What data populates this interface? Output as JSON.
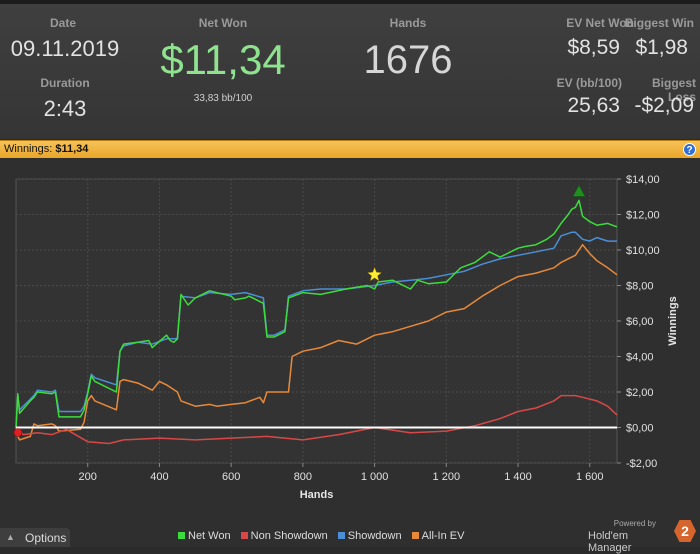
{
  "stats": {
    "date_label": "Date",
    "date_value": "09.11.2019",
    "duration_label": "Duration",
    "duration_value": "2:43",
    "net_won_label": "Net Won",
    "net_won_value": "$11,34",
    "net_won_sub": "33,83 bb/100",
    "hands_label": "Hands",
    "hands_value": "1676",
    "ev_net_won_label": "EV Net Won",
    "ev_net_won_value": "$8,59",
    "biggest_win_label": "Biggest Win",
    "biggest_win_value": "$1,98",
    "ev_bb_label": "EV (bb/100)",
    "ev_bb_value": "25,63",
    "biggest_loss_label": "Biggest Loss",
    "biggest_loss_value": "-$2,09"
  },
  "banner": {
    "label": "Winnings:",
    "value": "$11,34",
    "help": "?"
  },
  "colors": {
    "net_won": "#3ddc3d",
    "non_showdown": "#d94848",
    "showdown": "#4a8fd8",
    "all_in_ev": "#e8893a",
    "net_won_text": "#8fe38f",
    "banner": "#f0b440"
  },
  "chart_data": {
    "type": "line",
    "xlabel": "Hands",
    "ylabel": "Winnings",
    "xlim": [
      0,
      1676
    ],
    "ylim": [
      -2,
      14
    ],
    "x_ticks": [
      200,
      400,
      600,
      800,
      1000,
      1200,
      1400,
      1600
    ],
    "x_tick_labels": [
      "200",
      "400",
      "600",
      "800",
      "1 000",
      "1 200",
      "1 400",
      "1 600"
    ],
    "y_ticks": [
      -2,
      0,
      2,
      4,
      6,
      8,
      10,
      12,
      14
    ],
    "y_tick_labels": [
      "-$2,00",
      "$0,00",
      "$2,00",
      "$4,00",
      "$6,00",
      "$8,00",
      "$10,00",
      "$12,00",
      "$14,00"
    ],
    "grid": true,
    "legend_position": "bottom",
    "series": [
      {
        "name": "Net Won",
        "color": "#3ddc3d",
        "x": [
          0,
          5,
          10,
          40,
          50,
          60,
          100,
          110,
          120,
          180,
          190,
          200,
          210,
          220,
          280,
          290,
          300,
          340,
          370,
          380,
          420,
          430,
          440,
          450,
          460,
          480,
          500,
          540,
          600,
          610,
          640,
          650,
          690,
          700,
          720,
          750,
          760,
          800,
          850,
          920,
          980,
          1000,
          1010,
          1050,
          1100,
          1120,
          1150,
          1200,
          1240,
          1280,
          1320,
          1350,
          1400,
          1420,
          1450,
          1480,
          1500,
          1520,
          1540,
          1550,
          1560,
          1570,
          1580,
          1600,
          1620,
          1650,
          1676
        ],
        "y": [
          0.0,
          1.9,
          0.8,
          1.5,
          1.7,
          2.0,
          1.9,
          2.0,
          0.6,
          0.6,
          1.0,
          1.9,
          2.9,
          2.6,
          2.0,
          4.3,
          4.7,
          4.8,
          4.9,
          4.5,
          5.2,
          4.9,
          4.8,
          5.0,
          7.5,
          6.9,
          7.3,
          7.7,
          7.4,
          7.2,
          7.3,
          7.4,
          7.0,
          5.1,
          5.1,
          5.4,
          7.3,
          7.6,
          7.5,
          7.8,
          8.0,
          7.8,
          8.2,
          8.3,
          7.8,
          8.3,
          8.1,
          8.2,
          9.0,
          9.3,
          9.9,
          9.6,
          10.1,
          10.2,
          10.3,
          10.6,
          10.9,
          11.5,
          12.0,
          12.3,
          12.4,
          12.8,
          11.9,
          11.6,
          11.4,
          11.5,
          11.3
        ]
      },
      {
        "name": "Showdown",
        "color": "#4a8fd8",
        "x": [
          0,
          5,
          10,
          40,
          50,
          60,
          100,
          110,
          120,
          180,
          190,
          200,
          210,
          220,
          280,
          290,
          300,
          340,
          380,
          420,
          450,
          460,
          500,
          540,
          600,
          640,
          690,
          700,
          720,
          750,
          760,
          800,
          850,
          920,
          1000,
          1050,
          1100,
          1150,
          1200,
          1250,
          1300,
          1350,
          1400,
          1450,
          1500,
          1520,
          1550,
          1560,
          1580,
          1600,
          1620,
          1650,
          1676
        ],
        "y": [
          0.0,
          1.8,
          1.0,
          1.6,
          1.8,
          2.1,
          2.0,
          2.1,
          0.9,
          0.9,
          1.2,
          2.0,
          3.0,
          2.8,
          2.4,
          4.3,
          4.6,
          4.8,
          4.7,
          5.0,
          5.0,
          7.4,
          7.3,
          7.6,
          7.5,
          7.6,
          7.3,
          5.2,
          5.2,
          5.5,
          7.4,
          7.7,
          7.8,
          7.8,
          8.0,
          8.2,
          8.3,
          8.4,
          8.6,
          8.8,
          9.2,
          9.5,
          9.7,
          9.9,
          10.1,
          10.8,
          11.0,
          11.0,
          10.6,
          10.5,
          10.7,
          10.5,
          10.5
        ]
      },
      {
        "name": "All-In EV",
        "color": "#e8893a",
        "x": [
          0,
          5,
          10,
          40,
          50,
          60,
          100,
          110,
          120,
          180,
          190,
          200,
          210,
          220,
          280,
          290,
          300,
          340,
          380,
          400,
          420,
          450,
          460,
          500,
          540,
          560,
          600,
          640,
          680,
          690,
          700,
          760,
          770,
          800,
          850,
          900,
          950,
          1000,
          1050,
          1100,
          1150,
          1200,
          1250,
          1300,
          1350,
          1400,
          1450,
          1500,
          1520,
          1550,
          1560,
          1580,
          1600,
          1620,
          1650,
          1676
        ],
        "y": [
          0.0,
          -0.5,
          -0.7,
          -0.5,
          0.2,
          0.1,
          0.2,
          0.1,
          -0.2,
          -0.1,
          0.3,
          1.5,
          1.8,
          1.5,
          1.0,
          2.6,
          2.7,
          2.5,
          2.1,
          2.6,
          2.4,
          2.0,
          1.5,
          1.2,
          1.3,
          1.2,
          1.3,
          1.4,
          1.7,
          1.4,
          2.0,
          2.0,
          4.0,
          4.3,
          4.5,
          4.9,
          4.7,
          5.2,
          5.4,
          5.7,
          6.0,
          6.5,
          6.7,
          7.4,
          8.0,
          8.5,
          8.7,
          9.0,
          9.3,
          9.6,
          9.7,
          10.3,
          9.8,
          9.4,
          9.0,
          8.6
        ]
      },
      {
        "name": "Non Showdown",
        "color": "#d94848",
        "x": [
          0,
          20,
          60,
          100,
          140,
          200,
          260,
          300,
          400,
          500,
          600,
          700,
          800,
          900,
          1000,
          1100,
          1200,
          1280,
          1350,
          1400,
          1450,
          1500,
          1520,
          1560,
          1580,
          1620,
          1650,
          1676
        ],
        "y": [
          0.0,
          -0.4,
          -0.3,
          -0.4,
          -0.1,
          -0.8,
          -0.9,
          -0.7,
          -0.6,
          -0.7,
          -0.6,
          -0.5,
          -0.7,
          -0.4,
          0.0,
          -0.3,
          -0.2,
          0.1,
          0.5,
          0.9,
          1.1,
          1.5,
          1.8,
          1.8,
          1.7,
          1.5,
          1.2,
          0.7
        ]
      }
    ],
    "markers": [
      {
        "name": "start",
        "x": 0,
        "y": 0,
        "shape": "red-pin"
      },
      {
        "name": "best-hand",
        "x": 1000,
        "y": 8.6,
        "shape": "yellow-star"
      },
      {
        "name": "peak",
        "x": 1570,
        "y": 13.3,
        "shape": "green-triangle"
      }
    ]
  },
  "footer": {
    "options_label": "Options",
    "powered_by": "Powered by",
    "brand": "Hold'em Manager",
    "logo": "2"
  }
}
